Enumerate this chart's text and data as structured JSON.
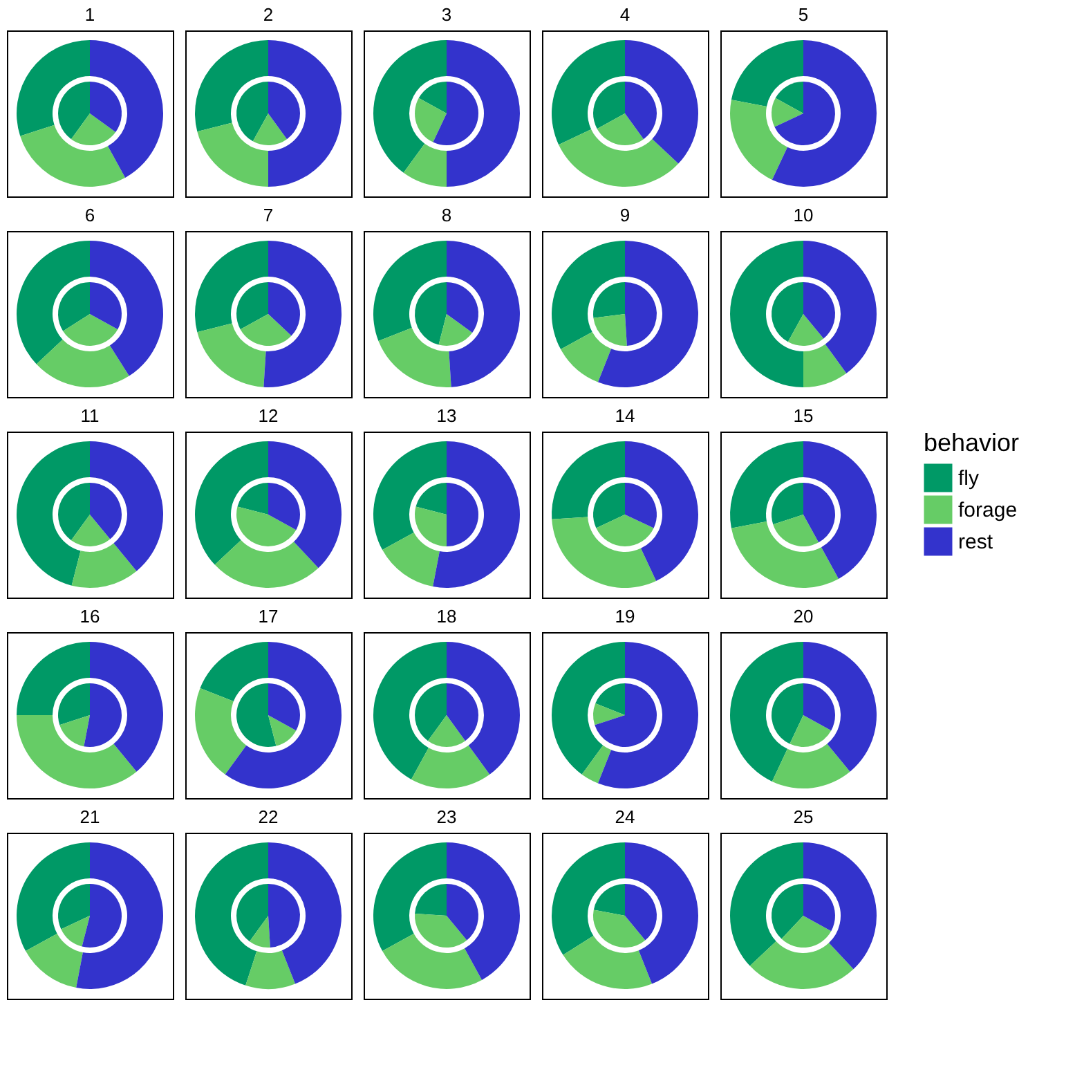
{
  "chart_data": [
    {
      "type": "donut",
      "title": "1",
      "categories": [
        "fly",
        "forage",
        "rest"
      ],
      "colors": [
        "#009966",
        "#66cc66",
        "#3333cc"
      ],
      "legend": "right",
      "legend_title": "behavior",
      "series": [
        {
          "values": [
            40,
            25,
            35
          ]
        },
        {
          "values": [
            30,
            28,
            42
          ]
        }
      ]
    },
    {
      "type": "donut",
      "title": "2",
      "categories": [
        null,
        null,
        null
      ],
      "colors": [
        "#009966",
        "#66cc66",
        "#3333cc"
      ],
      "series": [
        {
          "values": [
            42,
            18,
            40
          ]
        },
        {
          "values": [
            29,
            21,
            50
          ]
        }
      ]
    },
    {
      "type": "donut",
      "title": "3",
      "categories": [
        null,
        null,
        null
      ],
      "colors": [
        "#009966",
        "#66cc66",
        "#3333cc"
      ],
      "series": [
        {
          "values": [
            17,
            26,
            57
          ]
        },
        {
          "values": [
            40,
            10,
            50
          ]
        }
      ]
    },
    {
      "type": "donut",
      "title": "4",
      "categories": [
        null,
        null,
        null
      ],
      "colors": [
        "#009966",
        "#66cc66",
        "#3333cc"
      ],
      "series": [
        {
          "values": [
            33,
            27,
            40
          ]
        },
        {
          "values": [
            32,
            31,
            37
          ]
        }
      ]
    },
    {
      "type": "donut",
      "title": "5",
      "categories": [
        null,
        null,
        null
      ],
      "colors": [
        "#009966",
        "#66cc66",
        "#3333cc"
      ],
      "series": [
        {
          "values": [
            17,
            15,
            68
          ]
        },
        {
          "values": [
            22,
            21,
            57
          ]
        }
      ]
    },
    {
      "type": "donut",
      "title": "6",
      "categories": [
        null,
        null,
        null
      ],
      "colors": [
        "#009966",
        "#66cc66",
        "#3333cc"
      ],
      "series": [
        {
          "values": [
            34,
            33,
            33
          ]
        },
        {
          "values": [
            37,
            22,
            41
          ]
        }
      ]
    },
    {
      "type": "donut",
      "title": "7",
      "categories": [
        null,
        null,
        null
      ],
      "colors": [
        "#009966",
        "#66cc66",
        "#3333cc"
      ],
      "series": [
        {
          "values": [
            33,
            30,
            37
          ]
        },
        {
          "values": [
            29,
            20,
            51
          ]
        }
      ]
    },
    {
      "type": "donut",
      "title": "8",
      "categories": [
        null,
        null,
        null
      ],
      "colors": [
        "#009966",
        "#66cc66",
        "#3333cc"
      ],
      "series": [
        {
          "values": [
            46,
            19,
            35
          ]
        },
        {
          "values": [
            31,
            20,
            49
          ]
        }
      ]
    },
    {
      "type": "donut",
      "title": "9",
      "categories": [
        null,
        null,
        null
      ],
      "colors": [
        "#009966",
        "#66cc66",
        "#3333cc"
      ],
      "series": [
        {
          "values": [
            27,
            24,
            49
          ]
        },
        {
          "values": [
            33,
            11,
            56
          ]
        }
      ]
    },
    {
      "type": "donut",
      "title": "10",
      "categories": [
        null,
        null,
        null
      ],
      "colors": [
        "#009966",
        "#66cc66",
        "#3333cc"
      ],
      "series": [
        {
          "values": [
            42,
            19,
            39
          ]
        },
        {
          "values": [
            50,
            10,
            40
          ]
        }
      ]
    },
    {
      "type": "donut",
      "title": "11",
      "categories": [
        null,
        null,
        null
      ],
      "colors": [
        "#009966",
        "#66cc66",
        "#3333cc"
      ],
      "series": [
        {
          "values": [
            40,
            21,
            39
          ]
        },
        {
          "values": [
            46,
            15,
            39
          ]
        }
      ]
    },
    {
      "type": "donut",
      "title": "12",
      "categories": [
        null,
        null,
        null
      ],
      "colors": [
        "#009966",
        "#66cc66",
        "#3333cc"
      ],
      "series": [
        {
          "values": [
            21,
            46,
            33
          ]
        },
        {
          "values": [
            37,
            25,
            38
          ]
        }
      ]
    },
    {
      "type": "donut",
      "title": "13",
      "categories": [
        null,
        null,
        null
      ],
      "colors": [
        "#009966",
        "#66cc66",
        "#3333cc"
      ],
      "series": [
        {
          "values": [
            21,
            29,
            50
          ]
        },
        {
          "values": [
            33,
            14,
            53
          ]
        }
      ]
    },
    {
      "type": "donut",
      "title": "14",
      "categories": [
        null,
        null,
        null
      ],
      "colors": [
        "#009966",
        "#66cc66",
        "#3333cc"
      ],
      "series": [
        {
          "values": [
            32,
            36,
            32
          ]
        },
        {
          "values": [
            26,
            31,
            43
          ]
        }
      ]
    },
    {
      "type": "donut",
      "title": "15",
      "categories": [
        null,
        null,
        null
      ],
      "colors": [
        "#009966",
        "#66cc66",
        "#3333cc"
      ],
      "series": [
        {
          "values": [
            30,
            28,
            42
          ]
        },
        {
          "values": [
            28,
            30,
            42
          ]
        }
      ]
    },
    {
      "type": "donut",
      "title": "16",
      "categories": [
        null,
        null,
        null
      ],
      "colors": [
        "#009966",
        "#66cc66",
        "#3333cc"
      ],
      "series": [
        {
          "values": [
            30,
            17,
            53
          ]
        },
        {
          "values": [
            25,
            36,
            39
          ]
        }
      ]
    },
    {
      "type": "donut",
      "title": "17",
      "categories": [
        null,
        null,
        null
      ],
      "colors": [
        "#009966",
        "#66cc66",
        "#3333cc"
      ],
      "series": [
        {
          "values": [
            54,
            13,
            33
          ]
        },
        {
          "values": [
            19,
            21,
            60
          ]
        }
      ]
    },
    {
      "type": "donut",
      "title": "18",
      "categories": [
        null,
        null,
        null
      ],
      "colors": [
        "#009966",
        "#66cc66",
        "#3333cc"
      ],
      "series": [
        {
          "values": [
            40,
            20,
            40
          ]
        },
        {
          "values": [
            42,
            18,
            40
          ]
        }
      ]
    },
    {
      "type": "donut",
      "title": "19",
      "categories": [
        null,
        null,
        null
      ],
      "colors": [
        "#009966",
        "#66cc66",
        "#3333cc"
      ],
      "series": [
        {
          "values": [
            19,
            11,
            70
          ]
        },
        {
          "values": [
            40,
            4,
            56
          ]
        }
      ]
    },
    {
      "type": "donut",
      "title": "20",
      "categories": [
        null,
        null,
        null
      ],
      "colors": [
        "#009966",
        "#66cc66",
        "#3333cc"
      ],
      "series": [
        {
          "values": [
            43,
            24,
            33
          ]
        },
        {
          "values": [
            43,
            18,
            39
          ]
        }
      ]
    },
    {
      "type": "donut",
      "title": "21",
      "categories": [
        null,
        null,
        null
      ],
      "colors": [
        "#009966",
        "#66cc66",
        "#3333cc"
      ],
      "series": [
        {
          "values": [
            32,
            14,
            54
          ]
        },
        {
          "values": [
            33,
            14,
            53
          ]
        }
      ]
    },
    {
      "type": "donut",
      "title": "22",
      "categories": [
        null,
        null,
        null
      ],
      "colors": [
        "#009966",
        "#66cc66",
        "#3333cc"
      ],
      "series": [
        {
          "values": [
            40,
            11,
            49
          ]
        },
        {
          "values": [
            45,
            11,
            44
          ]
        }
      ]
    },
    {
      "type": "donut",
      "title": "23",
      "categories": [
        null,
        null,
        null
      ],
      "colors": [
        "#009966",
        "#66cc66",
        "#3333cc"
      ],
      "series": [
        {
          "values": [
            24,
            37,
            39
          ]
        },
        {
          "values": [
            33,
            25,
            42
          ]
        }
      ]
    },
    {
      "type": "donut",
      "title": "24",
      "categories": [
        null,
        null,
        null
      ],
      "colors": [
        "#009966",
        "#66cc66",
        "#3333cc"
      ],
      "series": [
        {
          "values": [
            22,
            39,
            39
          ]
        },
        {
          "values": [
            34,
            22,
            44
          ]
        }
      ]
    },
    {
      "type": "donut",
      "title": "25",
      "categories": [
        null,
        null,
        null
      ],
      "colors": [
        "#009966",
        "#66cc66",
        "#3333cc"
      ],
      "series": [
        {
          "values": [
            38,
            29,
            33
          ]
        },
        {
          "values": [
            37,
            25,
            38
          ]
        }
      ]
    }
  ]
}
